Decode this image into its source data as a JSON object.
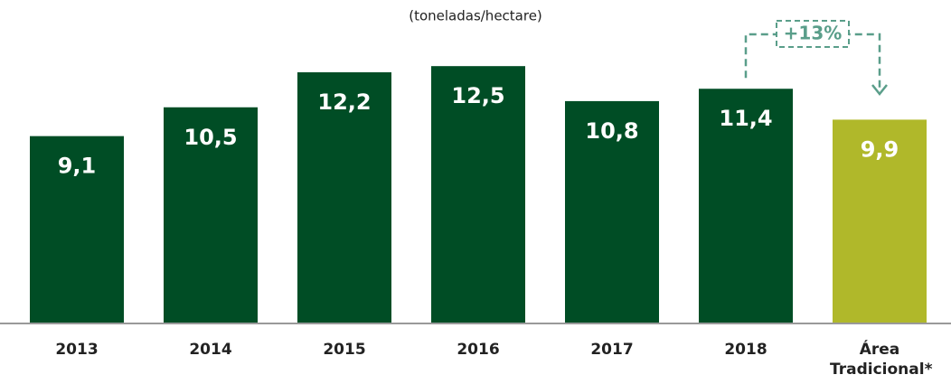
{
  "chart_data": {
    "type": "bar",
    "subtitle": "(toneladas/hectare)",
    "categories": [
      "2013",
      "2014",
      "2015",
      "2016",
      "2017",
      "2018",
      "Área Tradicional*"
    ],
    "values": [
      9.1,
      10.5,
      12.2,
      12.5,
      10.8,
      11.4,
      9.9
    ],
    "value_labels": [
      "9,1",
      "10,5",
      "12,2",
      "12,5",
      "10,8",
      "11,4",
      "9,9"
    ],
    "colors": [
      "#004d25",
      "#004d25",
      "#004d25",
      "#004d25",
      "#004d25",
      "#004d25",
      "#b0b82a"
    ],
    "annotation": "+13%",
    "ylim": [
      0,
      14
    ]
  }
}
